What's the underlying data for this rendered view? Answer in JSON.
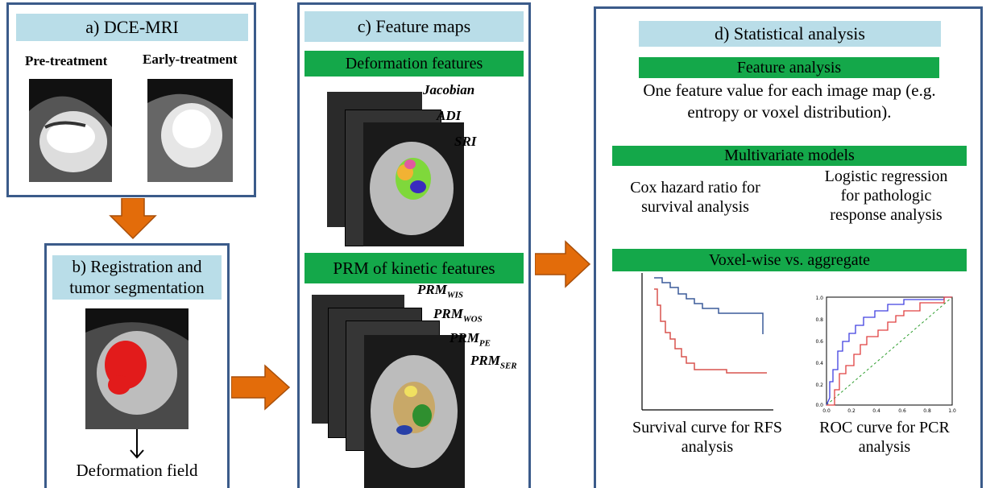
{
  "panel_a": {
    "title": "a) DCE-MRI",
    "label_pre": "Pre-treatment",
    "label_early": "Early-treatment"
  },
  "panel_b": {
    "title_line1": "b) Registration and",
    "title_line2": "tumor segmentation",
    "caption": "Deformation field"
  },
  "panel_c": {
    "title": "c) Feature maps",
    "section1": "Deformation features",
    "deform_labels": [
      "Jacobian",
      "ADI",
      "SRI"
    ],
    "section2": "PRM of kinetic features",
    "prm_base": "PRM",
    "prm_subs": [
      "WIS",
      "WOS",
      "PE",
      "SER"
    ]
  },
  "panel_d": {
    "title": "d) Statistical analysis",
    "feature_analysis": "Feature analysis",
    "feature_text_1": "One feature value for each image map (e.g.",
    "feature_text_2": "entropy or voxel distribution).",
    "multivariate": "Multivariate models",
    "cox_1": "Cox hazard ratio for",
    "cox_2": "survival analysis",
    "logit_1": "Logistic regression",
    "logit_2": "for pathologic",
    "logit_3": "response analysis",
    "voxelwise": "Voxel-wise vs. aggregate",
    "survival_cap_1": "Survival curve for RFS",
    "survival_cap_2": "analysis",
    "roc_cap_1": "ROC curve for PCR",
    "roc_cap_2": "analysis"
  },
  "colors": {
    "panel_border": "#3b5b8a",
    "header_bg": "#b9dde8",
    "green_bar": "#14a84a",
    "arrow": "#e36c0a",
    "curve_blue": "#3b5b9a",
    "curve_red": "#d9534f"
  },
  "roc_ticks": {
    "y": [
      "1.0",
      "0.8",
      "0.6",
      "0.4",
      "0.2",
      "0.0"
    ],
    "x": [
      "0.0",
      "0.2",
      "0.4",
      "0.6",
      "0.8",
      "1.0"
    ]
  }
}
